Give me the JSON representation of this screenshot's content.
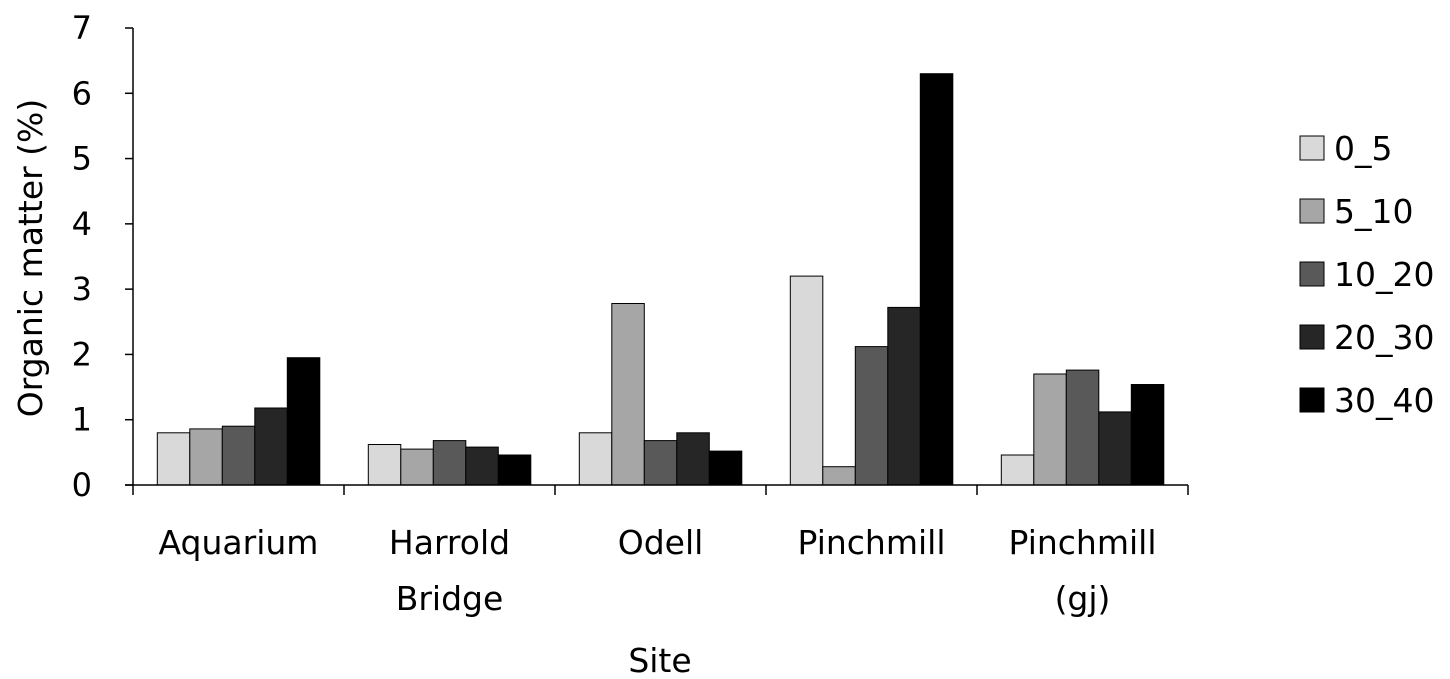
{
  "chart_data": {
    "type": "bar",
    "title": "",
    "xlabel": "Site",
    "ylabel": "Organic matter (%)",
    "ylim": [
      0,
      7
    ],
    "yticks": [
      "0",
      "1",
      "2",
      "3",
      "4",
      "5",
      "6",
      "7"
    ],
    "categories": [
      [
        "Aquarium"
      ],
      [
        "Harrold",
        "Bridge"
      ],
      [
        "Odell"
      ],
      [
        "Pinchmill"
      ],
      [
        "Pinchmill",
        "(gj)"
      ]
    ],
    "series": [
      {
        "name": "0_5",
        "color": "#d9d9d9",
        "values": [
          0.8,
          0.62,
          0.8,
          3.2,
          0.46
        ]
      },
      {
        "name": "5_10",
        "color": "#a6a6a6",
        "values": [
          0.86,
          0.55,
          2.78,
          0.28,
          1.7
        ]
      },
      {
        "name": "10_20",
        "color": "#595959",
        "values": [
          0.9,
          0.68,
          0.68,
          2.12,
          1.76
        ]
      },
      {
        "name": "20_30",
        "color": "#262626",
        "values": [
          1.18,
          0.58,
          0.8,
          2.72,
          1.12
        ]
      },
      {
        "name": "30_40",
        "color": "#000000",
        "values": [
          1.95,
          0.46,
          0.52,
          6.3,
          1.54
        ]
      }
    ],
    "grid": false,
    "legend": "right"
  }
}
